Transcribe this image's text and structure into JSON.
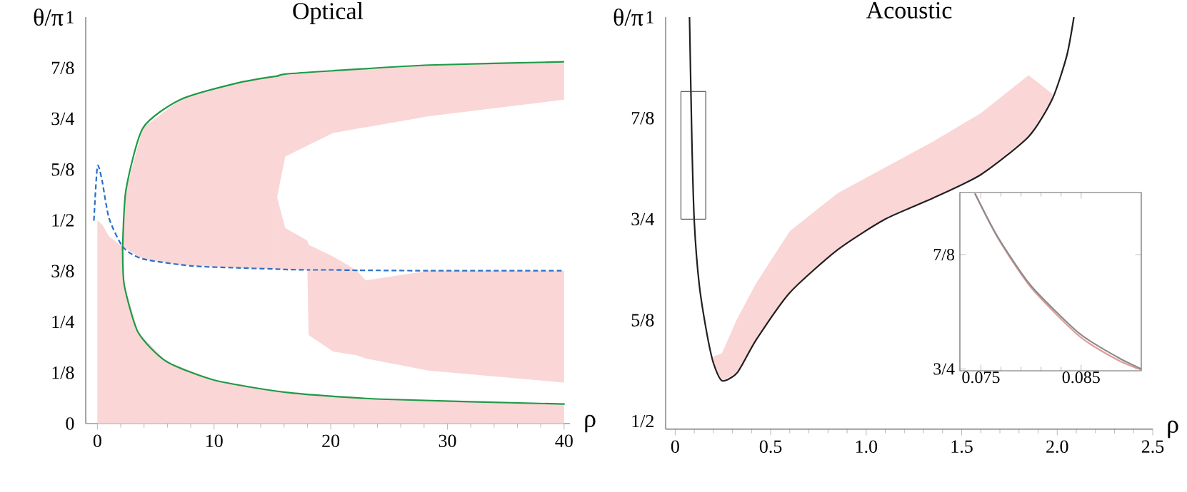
{
  "chart_data": [
    {
      "type": "line",
      "title": "Optical",
      "xlabel": "ρ",
      "ylabel": "θ/π",
      "xlim": [
        -1,
        40.5
      ],
      "ylim": [
        0,
        1
      ],
      "xticks": [
        0,
        10,
        20,
        30,
        40
      ],
      "yticks": [
        0,
        {
          "value": 0.125,
          "label": "1/8"
        },
        {
          "value": 0.25,
          "label": "1/4"
        },
        {
          "value": 0.375,
          "label": "3/8"
        },
        {
          "value": 0.5,
          "label": "1/2"
        },
        {
          "value": 0.625,
          "label": "5/8"
        },
        {
          "value": 0.75,
          "label": "3/4"
        },
        {
          "value": 0.875,
          "label": "7/8"
        },
        1
      ],
      "marker": "none",
      "series": [
        {
          "color": "#1e9a48",
          "line_style": "solid",
          "x": [
            40,
            28.4,
            20.2,
            16.1,
            15.4,
            15.4,
            12,
            7.1,
            3.9,
            2.45,
            2.16,
            2.16,
            2.16,
            2.3,
            3.5,
            5.9,
            10,
            16.1,
            24.3,
            40
          ],
          "values": [
            0.89,
            0.882,
            0.868,
            0.86,
            0.855,
            0.855,
            0.838,
            0.797,
            0.727,
            0.575,
            0.434,
            0.434,
            0.434,
            0.341,
            0.224,
            0.153,
            0.107,
            0.077,
            0.06,
            0.048
          ],
          "lower": [
            0.797,
            0.756,
            0.715,
            0.657,
            0.557,
            0.38,
            0.383,
            0.39,
            0.405,
            0.43,
            0.434,
            null,
            0,
            0,
            0,
            0,
            0,
            0,
            0,
            0
          ],
          "upper": [
            0.89,
            0.882,
            0.868,
            0.86,
            0.855,
            0.855,
            0.838,
            0.797,
            0.727,
            0.575,
            0.434,
            null,
            0.434,
            0.341,
            0.224,
            0.153,
            0.107,
            0.077,
            0.06,
            0.048
          ]
        },
        {
          "color": "#2a70c8",
          "line_style": "dashed",
          "x": [
            -0.3,
            0,
            0.4,
            1,
            2.2,
            3.9,
            8,
            12,
            15.4,
            16.1,
            18.0,
            18.1,
            20.2,
            22.2,
            23,
            28.4,
            40
          ],
          "values": [
            0.499,
            0.633,
            0.598,
            0.505,
            0.434,
            0.405,
            0.388,
            0.383,
            0.38,
            0.379,
            0.378,
            0.378,
            0.378,
            0.377,
            0.377,
            0.376,
            0.376
          ],
          "lower": [
            null,
            0,
            0,
            0,
            0,
            null,
            null,
            null,
            0.38,
            0.379,
            0.378,
            0.218,
            0.177,
            0.168,
            0.16,
            0.13,
            0.101
          ],
          "upper": [
            null,
            0.5,
            0.49,
            0.46,
            0.434,
            null,
            null,
            null,
            0.557,
            0.481,
            0.45,
            0.44,
            0.411,
            0.377,
            0.352,
            0.376,
            0.376
          ]
        }
      ]
    },
    {
      "type": "line",
      "title": "Acoustic",
      "xlabel": "ρ",
      "ylabel": "θ/π",
      "xlim": [
        -0.05,
        2.5
      ],
      "ylim": [
        0.49,
        1
      ],
      "xticks": [
        0,
        0.5,
        {
          "value": 1,
          "label": "1.0"
        },
        1.5,
        {
          "value": 2,
          "label": "2.0"
        },
        2.5
      ],
      "yticks": [
        {
          "value": 0.5,
          "label": "1/2"
        },
        {
          "value": 0.625,
          "label": "5/8"
        },
        {
          "value": 0.75,
          "label": "3/4"
        },
        {
          "value": 0.875,
          "label": "7/8"
        },
        1
      ],
      "marker": "none",
      "series": [
        {
          "color": "#231f20",
          "line_style": "solid",
          "x": [
            0.075,
            0.0875,
            0.1,
            0.125,
            0.1625,
            0.2,
            0.245,
            0.325,
            0.425,
            0.6,
            0.85,
            1.1,
            1.35,
            1.6,
            1.85,
            1.975,
            2.05,
            2.0875
          ],
          "values": [
            1,
            0.846,
            0.747,
            0.671,
            0.613,
            0.572,
            0.55,
            0.56,
            0.601,
            0.659,
            0.712,
            0.75,
            0.776,
            0.805,
            0.852,
            0.899,
            0.952,
            1
          ],
          "lower": [
            null,
            null,
            null,
            null,
            null,
            0.572,
            0.55,
            0.56,
            0.601,
            0.659,
            0.712,
            0.75,
            0.776,
            0.805,
            0.852,
            0.899,
            null,
            null
          ],
          "upper": [
            null,
            null,
            null,
            null,
            null,
            0.58,
            0.584,
            0.627,
            0.671,
            0.735,
            0.782,
            0.814,
            0.846,
            0.881,
            0.928,
            0.905,
            null,
            null
          ]
        }
      ]
    },
    {
      "type": "line",
      "xlim": [
        0.0729,
        0.091
      ],
      "ylim": [
        0.748,
        0.943
      ],
      "xticks": [
        0.075,
        0.085
      ],
      "yticks": [
        {
          "value": 0.75,
          "label": "3/4"
        },
        {
          "value": 0.875,
          "label": "7/8"
        }
      ],
      "marker": "none",
      "series": [
        {
          "color": "#e39a9a",
          "line_style": "solid",
          "x": [
            0.0744,
            0.0767,
            0.08,
            0.0848,
            0.0886,
            0.091
          ],
          "values": [
            0.942,
            0.893,
            0.839,
            0.786,
            0.76,
            0.749
          ]
        },
        {
          "color": "#8c8c8c",
          "line_style": "solid",
          "x": [
            0.0744,
            0.0767,
            0.08,
            0.0848,
            0.0886,
            0.091
          ],
          "values": [
            0.942,
            0.894,
            0.841,
            0.789,
            0.763,
            0.75
          ]
        }
      ]
    }
  ]
}
